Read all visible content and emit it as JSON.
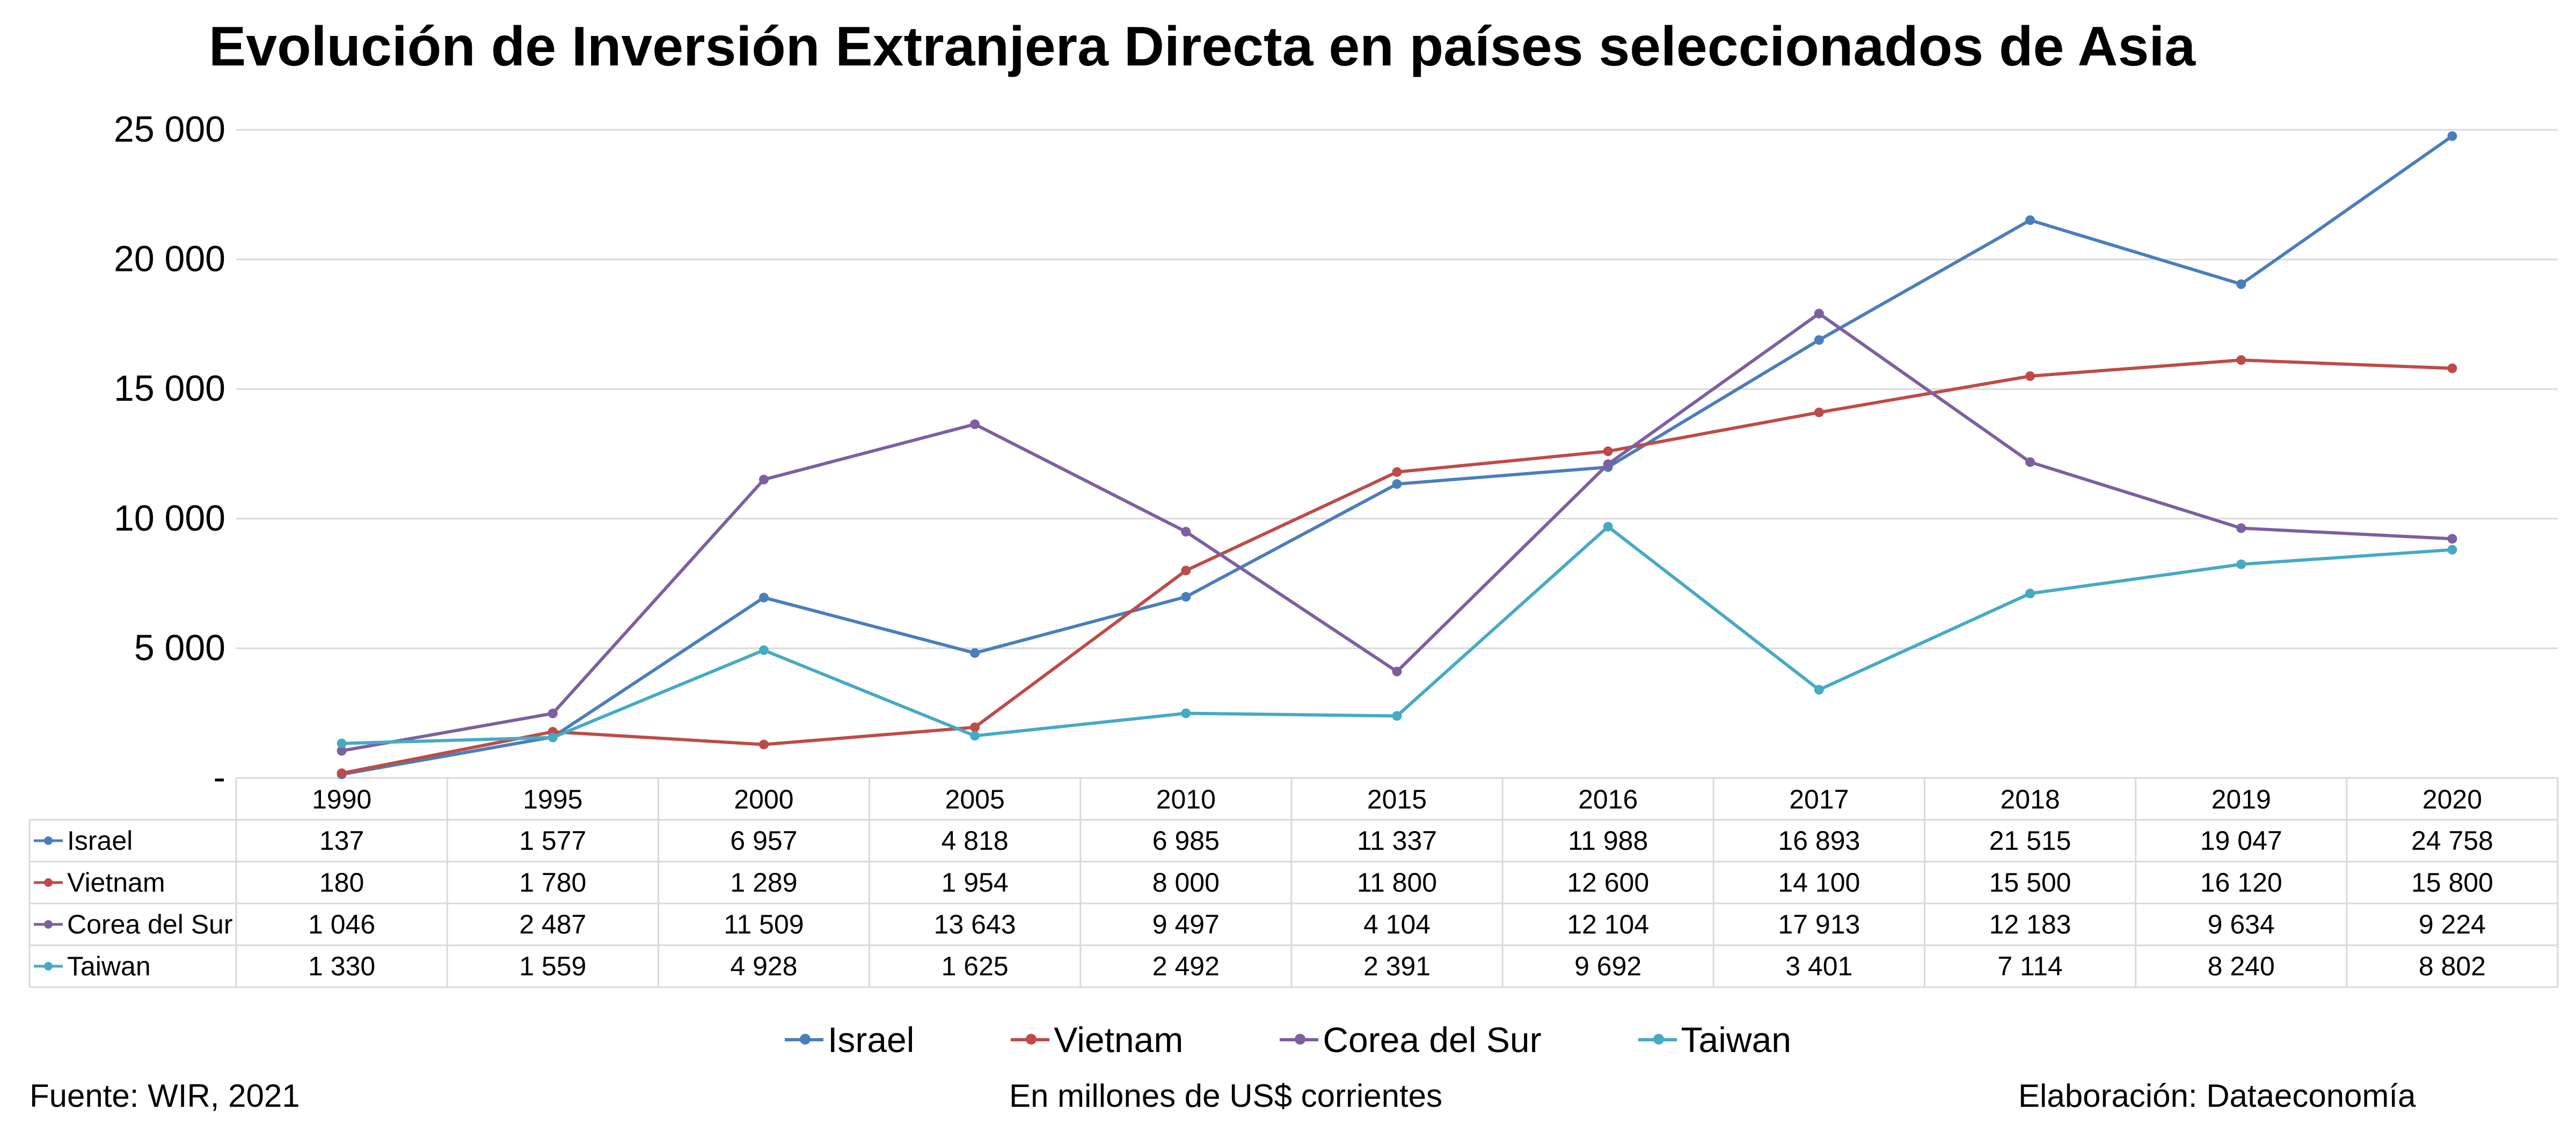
{
  "title": "Evolución de Inversión Extranjera Directa en países seleccionados de Asia",
  "footer": {
    "source": "Fuente: WIR, 2021",
    "units": "En millones de US$ corrientes",
    "author": "Elaboración: Dataeconomía"
  },
  "chart_data": {
    "type": "line",
    "categories": [
      "1990",
      "1995",
      "2000",
      "2005",
      "2010",
      "2015",
      "2016",
      "2017",
      "2018",
      "2019",
      "2020"
    ],
    "ylim": [
      0,
      25000
    ],
    "yticks": [
      0,
      5000,
      10000,
      15000,
      20000,
      25000
    ],
    "ytick_labels": [
      "-",
      "5 000",
      "10 000",
      "15 000",
      "20 000",
      "25 000"
    ],
    "grid": true,
    "legend": "bottom",
    "data_table": true,
    "series": [
      {
        "name": "Israel",
        "color": "#4a7ebb",
        "values": [
          137,
          1577,
          6957,
          4818,
          6985,
          11337,
          11988,
          16893,
          21515,
          19047,
          24758
        ],
        "labels": [
          "137",
          "1 577",
          "6 957",
          "4 818",
          "6 985",
          "11 337",
          "11 988",
          "16 893",
          "21 515",
          "19 047",
          "24 758"
        ]
      },
      {
        "name": "Vietnam",
        "color": "#be4b48",
        "values": [
          180,
          1780,
          1289,
          1954,
          8000,
          11800,
          12600,
          14100,
          15500,
          16120,
          15800
        ],
        "labels": [
          "180",
          "1 780",
          "1 289",
          "1 954",
          "8 000",
          "11 800",
          "12 600",
          "14 100",
          "15 500",
          "16 120",
          "15 800"
        ]
      },
      {
        "name": "Corea del Sur",
        "color": "#7d5fa0",
        "values": [
          1046,
          2487,
          11509,
          13643,
          9497,
          4104,
          12104,
          17913,
          12183,
          9634,
          9224
        ],
        "labels": [
          "1 046",
          "2 487",
          "11 509",
          "13 643",
          "9 497",
          "4 104",
          "12 104",
          "17 913",
          "12 183",
          "9 634",
          "9 224"
        ]
      },
      {
        "name": "Taiwan",
        "color": "#46aac5",
        "values": [
          1330,
          1559,
          4928,
          1625,
          2492,
          2391,
          9692,
          3401,
          7114,
          8240,
          8802
        ],
        "labels": [
          "1 330",
          "1 559",
          "4 928",
          "1 625",
          "2 492",
          "2 391",
          "9 692",
          "3 401",
          "7 114",
          "8 240",
          "8 802"
        ]
      }
    ]
  }
}
